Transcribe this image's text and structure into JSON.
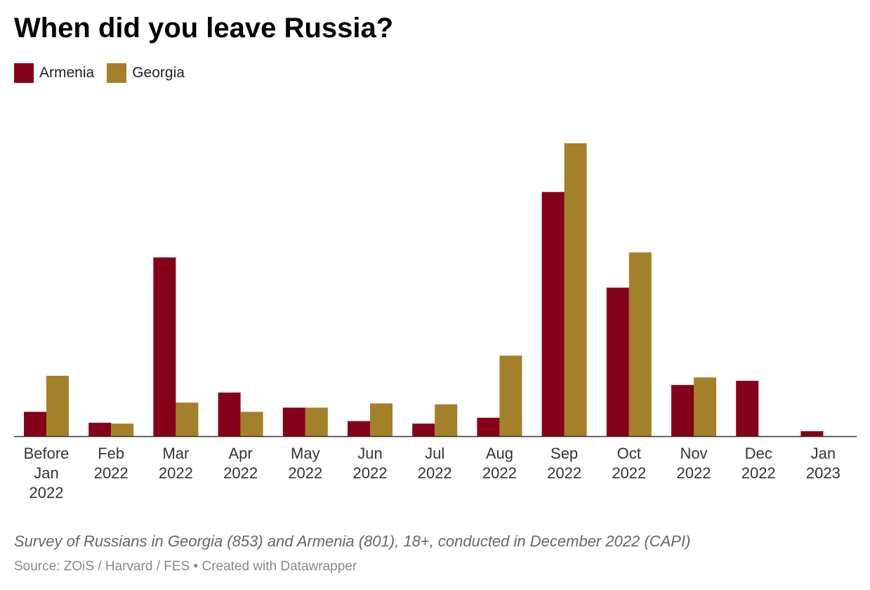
{
  "chart_data": {
    "type": "bar",
    "title": "When did you leave Russia?",
    "categories": [
      [
        "Before",
        "Jan",
        "2022"
      ],
      [
        "Feb",
        "2022"
      ],
      [
        "Mar",
        "2022"
      ],
      [
        "Apr",
        "2022"
      ],
      [
        "May",
        "2022"
      ],
      [
        "Jun",
        "2022"
      ],
      [
        "Jul",
        "2022"
      ],
      [
        "Aug",
        "2022"
      ],
      [
        "Sep",
        "2022"
      ],
      [
        "Oct",
        "2022"
      ],
      [
        "Nov",
        "2022"
      ],
      [
        "Dec",
        "2022"
      ],
      [
        "Jan",
        "2023"
      ]
    ],
    "series": [
      {
        "name": "Armenia",
        "color": "#850019",
        "values": [
          2.9,
          1.6,
          21.3,
          5.2,
          3.4,
          1.8,
          1.5,
          2.2,
          29.1,
          17.7,
          6.1,
          6.6,
          0.6
        ]
      },
      {
        "name": "Georgia",
        "color": "#a3802a",
        "values": [
          7.2,
          1.5,
          4.0,
          2.9,
          3.4,
          3.9,
          3.8,
          9.6,
          34.9,
          21.9,
          7.0,
          0,
          0
        ]
      }
    ],
    "ylim": [
      0,
      35
    ],
    "grid": false,
    "legend_placement": "top-left",
    "notes": "Survey of Russians in Georgia (853) and Armenia (801), 18+, conducted in December 2022 (CAPI)",
    "source": "Source: ZOiS / Harvard / FES • Created with Datawrapper"
  }
}
